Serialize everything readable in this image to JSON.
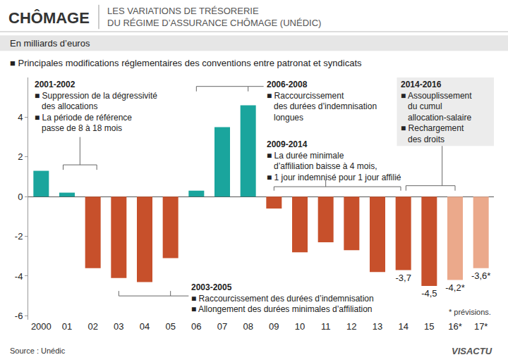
{
  "chart_data": {
    "type": "bar",
    "title": "CHÔMAGE",
    "subtitle": "LES VARIATIONS DE TRÉSORERIE\nDU RÉGIME D’ASSURANCE CHÔMAGE (UNÉDIC)",
    "ylabel": "En milliards d’euros",
    "note": "■ Principales modifications réglementaires des conventions entre patronat et syndicats",
    "categories": [
      "2000",
      "01",
      "02",
      "03",
      "04",
      "05",
      "06",
      "07",
      "08",
      "09",
      "10",
      "11",
      "12",
      "13",
      "14",
      "15",
      "16*",
      "17*"
    ],
    "values": [
      1.3,
      0.2,
      -3.6,
      -4.1,
      -4.3,
      -3.1,
      0.3,
      3.5,
      4.6,
      -0.6,
      -2.8,
      -2.3,
      -2.7,
      -3.8,
      -3.7,
      -4.5,
      -4.2,
      -3.6
    ],
    "value_labels": [
      null,
      null,
      null,
      null,
      null,
      null,
      null,
      null,
      null,
      null,
      null,
      null,
      null,
      null,
      "-3,7",
      "-4,5",
      "-4,2*",
      "-3,6*"
    ],
    "data_labels": true,
    "colors": [
      "#1aa59d",
      "#1aa59d",
      "#c7502b",
      "#c7502b",
      "#c7502b",
      "#c7502b",
      "#1aa59d",
      "#1aa59d",
      "#1aa59d",
      "#c7502b",
      "#c7502b",
      "#c7502b",
      "#c7502b",
      "#c7502b",
      "#c7502b",
      "#c7502b",
      "#eba98b",
      "#eba98b"
    ],
    "ylim": [
      -6.2,
      6
    ],
    "yticks": [
      -6,
      -4,
      -2,
      0,
      2,
      4
    ],
    "grid": false,
    "annotations": [
      {
        "label": "2001-2002",
        "items": [
          "■ Suppression de la dégressivité\ndes allocations",
          "■ La période de référence\npasse de 8 à 18 mois"
        ]
      },
      {
        "label": "2006-2008",
        "items": [
          "■ Raccourcissement\ndes durées d’indemnisation\nlongues"
        ]
      },
      {
        "label": "2009-2014",
        "items": [
          "■ La durée minimale\nd’affiliation baisse à 4 mois,",
          "■ 1 jour indemnisé pour 1 jour affilié"
        ]
      },
      {
        "label": "2014-2016",
        "items": [
          "■ Assouplissement\ndu cumul\nallocation-salaire",
          "■ Rechargement\ndes droits"
        ]
      },
      {
        "label": "2003-2005",
        "items": [
          "■ Raccourcissement des durées d’indemnisation",
          "■ Allongement des durées minimales d’affiliation"
        ]
      }
    ],
    "footnote": "* prévisions.",
    "source": "Source : Unédic",
    "logo": "VISACTU"
  }
}
